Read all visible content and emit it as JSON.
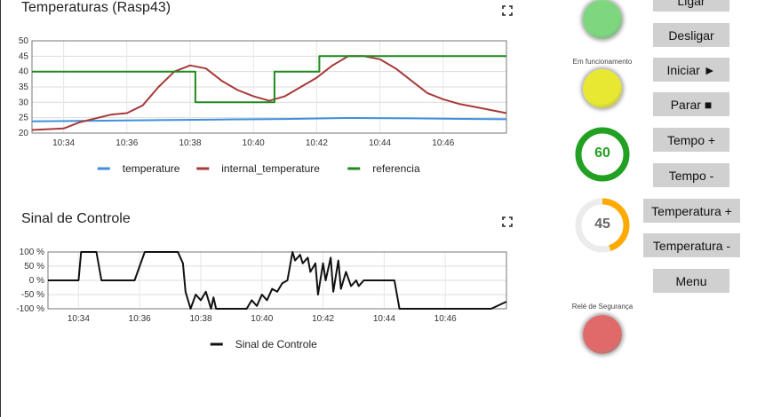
{
  "temp_chart": {
    "title": "Temperaturas (Rasp43)",
    "expand_icon": "fullscreen-icon",
    "chart_data": {
      "type": "line",
      "title": "Temperaturas (Rasp43)",
      "xlabel": "",
      "ylabel": "",
      "xlim": [
        "10:33",
        "10:48"
      ],
      "ylim": [
        20,
        50
      ],
      "y_ticks": [
        "20",
        "25",
        "30",
        "35",
        "40",
        "45",
        "50"
      ],
      "x_ticks": [
        "10:34",
        "10:36",
        "10:38",
        "10:40",
        "10:42",
        "10:44",
        "10:46"
      ],
      "grid": true,
      "legend": "bottom",
      "series": [
        {
          "name": "temperature",
          "color": "#3f8fdc",
          "x": [
            "10:33",
            "10:35",
            "10:37",
            "10:39",
            "10:41",
            "10:43",
            "10:45",
            "10:47",
            "10:48"
          ],
          "y": [
            23.8,
            24.0,
            24.2,
            24.4,
            24.6,
            24.9,
            24.8,
            24.6,
            24.5
          ]
        },
        {
          "name": "internal_temperature",
          "color": "#a83a3a",
          "x": [
            "10:33",
            "10:34",
            "10:34:30",
            "10:35:30",
            "10:36",
            "10:36:30",
            "10:37",
            "10:37:30",
            "10:38",
            "10:38:30",
            "10:39",
            "10:39:30",
            "10:40",
            "10:40:30",
            "10:41",
            "10:41:30",
            "10:42",
            "10:42:30",
            "10:43",
            "10:43:30",
            "10:44",
            "10:44:30",
            "10:45",
            "10:45:30",
            "10:46",
            "10:46:30",
            "10:47",
            "10:47:30",
            "10:48"
          ],
          "y": [
            21,
            21.5,
            23.5,
            26,
            26.5,
            29,
            35,
            40,
            42,
            41,
            37,
            34,
            32,
            30.5,
            32,
            35,
            38,
            42,
            45,
            45,
            44,
            41,
            37,
            33,
            31,
            29.5,
            28.5,
            27.5,
            26.5
          ]
        },
        {
          "name": "referencia",
          "color": "#1e8a1e",
          "x": [
            "10:33",
            "10:38:10",
            "10:38:10",
            "10:40:40",
            "10:40:40",
            "10:42:05",
            "10:42:05",
            "10:48"
          ],
          "y": [
            40,
            40,
            30,
            30,
            40,
            40,
            45,
            45
          ]
        }
      ]
    }
  },
  "signal_chart": {
    "title": "Sinal de Controle",
    "expand_icon": "fullscreen-icon",
    "chart_data": {
      "type": "line",
      "title": "Sinal de Controle",
      "xlabel": "",
      "ylabel": "",
      "xlim": [
        "10:33",
        "10:48"
      ],
      "ylim": [
        -100,
        100
      ],
      "y_ticks": [
        "100 %",
        "50 %",
        "0 %",
        "-50 %",
        "-100 %"
      ],
      "x_ticks": [
        "10:34",
        "10:36",
        "10:38",
        "10:40",
        "10:42",
        "10:44",
        "10:46"
      ],
      "grid": true,
      "legend": "bottom",
      "series": [
        {
          "name": "Sinal de Controle",
          "color": "#111111",
          "x": [
            "10:33",
            "10:34",
            "10:34:05",
            "10:34:35",
            "10:34:45",
            "10:35:50",
            "10:36:10",
            "10:37:15",
            "10:37:25",
            "10:37:30",
            "10:37:40",
            "10:37:50",
            "10:38:00",
            "10:38:10",
            "10:38:20",
            "10:38:25",
            "10:38:30",
            "10:39:30",
            "10:39:40",
            "10:39:50",
            "10:40:00",
            "10:40:10",
            "10:40:20",
            "10:40:30",
            "10:40:40",
            "10:40:50",
            "10:41:00",
            "10:41:05",
            "10:41:15",
            "10:41:20",
            "10:41:30",
            "10:41:35",
            "10:41:45",
            "10:41:50",
            "10:42:00",
            "10:42:05",
            "10:42:15",
            "10:42:20",
            "10:42:30",
            "10:42:35",
            "10:42:45",
            "10:42:55",
            "10:43:05",
            "10:43:10",
            "10:43:20",
            "10:44:20",
            "10:44:30",
            "10:47:30",
            "10:48"
          ],
          "y": [
            0,
            0,
            100,
            100,
            0,
            0,
            100,
            100,
            60,
            -40,
            -100,
            -50,
            -70,
            -40,
            -100,
            -60,
            -100,
            -100,
            -70,
            -90,
            -50,
            -70,
            -30,
            -40,
            -10,
            0,
            100,
            70,
            90,
            60,
            80,
            30,
            60,
            -50,
            60,
            0,
            80,
            -40,
            70,
            -30,
            30,
            -20,
            0,
            -20,
            0,
            0,
            -100,
            -100,
            -75
          ]
        }
      ]
    }
  },
  "status": {
    "top_led_color": "#7ed67e",
    "running_label": "Em funcionamento",
    "running_led_color": "#e8e832",
    "safety_label": "Relé de Segurança",
    "safety_led_color": "#e06a6a"
  },
  "gauges": {
    "time": {
      "value": "60",
      "fraction": 1.0,
      "color": "#22a022"
    },
    "temperature": {
      "value": "45",
      "fraction": 0.45,
      "color": "#ffaa00"
    }
  },
  "buttons": {
    "ligar": "Ligar",
    "desligar": "Desligar",
    "iniciar": "Iniciar ►",
    "parar": "Parar ■",
    "tempo_mais": "Tempo +",
    "tempo_menos": "Tempo -",
    "temp_mais": "Temperatura +",
    "temp_menos": "Temperatura -",
    "menu": "Menu"
  }
}
